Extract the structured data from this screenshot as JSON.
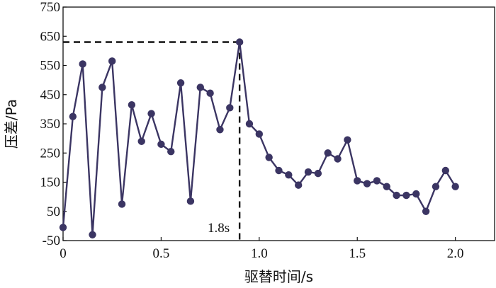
{
  "chart_data": {
    "type": "line",
    "title": "",
    "xlabel": "驱替时间/s",
    "ylabel": "压差/Pa",
    "xlim": [
      0,
      2.2
    ],
    "ylim": [
      -50,
      750
    ],
    "xticks": [
      0,
      0.5,
      1.0,
      1.5,
      2.0
    ],
    "xtick_labels": [
      "0",
      "0.5",
      "1.0",
      "1.5",
      "2.0"
    ],
    "yticks": [
      -50,
      50,
      150,
      250,
      350,
      450,
      550,
      650,
      750
    ],
    "ytick_labels": [
      "-50",
      "50",
      "150",
      "250",
      "350",
      "450",
      "550",
      "650",
      "750"
    ],
    "grid": false,
    "legend": "none",
    "line_color": "#3b3563",
    "series": [
      {
        "x": [
          0,
          0.05,
          0.1,
          0.15,
          0.2,
          0.25,
          0.3,
          0.35,
          0.4,
          0.45,
          0.5,
          0.55,
          0.6,
          0.65,
          0.7,
          0.75,
          0.8,
          0.85,
          0.9,
          0.95,
          1.0,
          1.05,
          1.1,
          1.15,
          1.2,
          1.25,
          1.3,
          1.35,
          1.4,
          1.45,
          1.5,
          1.55,
          1.6,
          1.65,
          1.7,
          1.75,
          1.8,
          1.85,
          1.9,
          1.95,
          2.0
        ],
        "y": [
          -5,
          375,
          555,
          -30,
          475,
          565,
          75,
          415,
          290,
          385,
          280,
          255,
          490,
          85,
          475,
          455,
          330,
          405,
          630,
          350,
          315,
          235,
          190,
          175,
          140,
          185,
          180,
          250,
          230,
          295,
          155,
          145,
          155,
          135,
          105,
          105,
          110,
          50,
          135,
          190,
          135
        ]
      }
    ],
    "annotations": [
      {
        "text": "1.8s",
        "x": 0.9,
        "y": 630
      }
    ]
  }
}
